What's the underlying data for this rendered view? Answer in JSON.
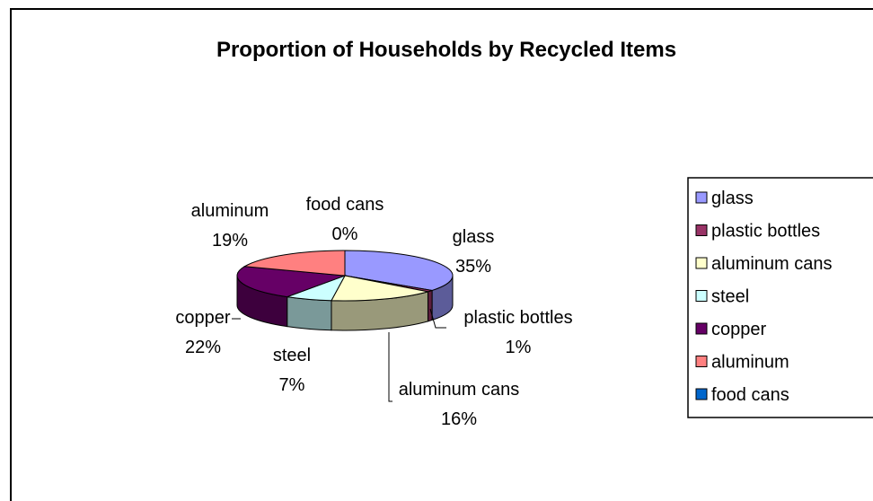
{
  "chart_data": {
    "type": "pie",
    "title": "Proportion of Households by Recycled Items",
    "slices": [
      {
        "label": "glass",
        "value": 35,
        "value_label": "35%",
        "color": "#9999ff"
      },
      {
        "label": "plastic bottles",
        "value": 1,
        "value_label": "1%",
        "color": "#993366"
      },
      {
        "label": "aluminum cans",
        "value": 16,
        "value_label": "16%",
        "color": "#ffffcc"
      },
      {
        "label": "steel",
        "value": 7,
        "value_label": "7%",
        "color": "#ccffff"
      },
      {
        "label": "copper",
        "value": 22,
        "value_label": "22%",
        "color": "#660066"
      },
      {
        "label": "aluminum",
        "value": 19,
        "value_label": "19%",
        "color": "#ff8080"
      },
      {
        "label": "food cans",
        "value": 0,
        "value_label": "0%",
        "color": "#0066cc"
      }
    ],
    "legend_position": "right",
    "three_d": true
  }
}
